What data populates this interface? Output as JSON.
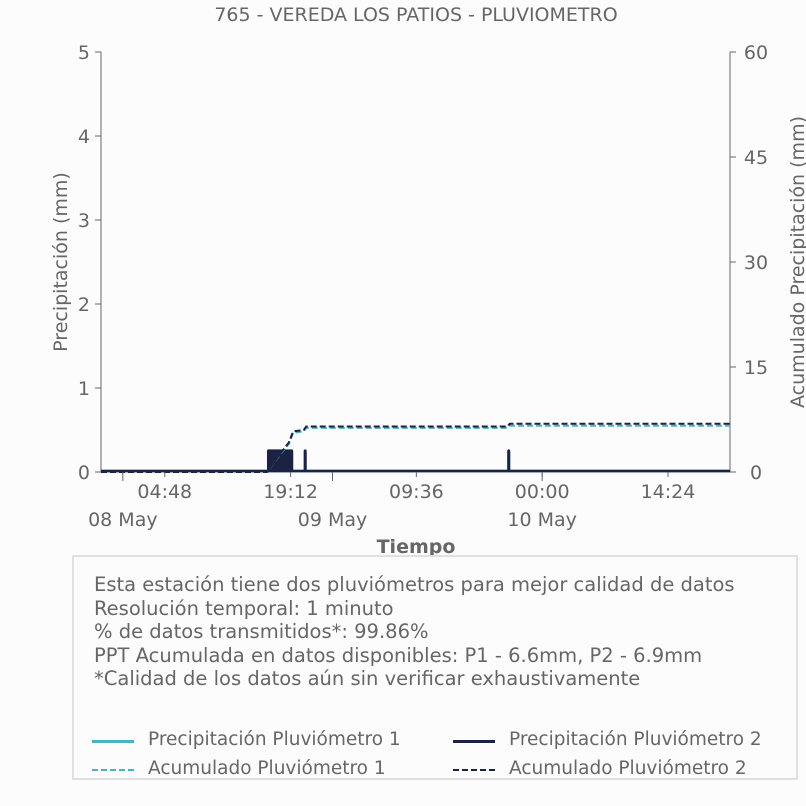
{
  "chart_data": {
    "type": "line",
    "title": "765 - VEREDA LOS PATIOS - PLUVIOMETRO",
    "xlabel": "Tiempo",
    "ylabel": "Precipitación (mm)",
    "y2label": "Acumulado Precipitación (mm)",
    "ylim": [
      0,
      5
    ],
    "y2lim": [
      0,
      60
    ],
    "yticks": [
      "0",
      "1",
      "2",
      "3",
      "4",
      "5"
    ],
    "y2ticks": [
      "0",
      "15",
      "30",
      "45",
      "60"
    ],
    "xticks": [
      {
        "label": "04:48",
        "h": 4.8
      },
      {
        "label": "19:12",
        "h": 19.2
      },
      {
        "label": "09:36",
        "h": 33.6
      },
      {
        "label": "00:00",
        "h": 48
      },
      {
        "label": "14:24",
        "h": 62.4
      }
    ],
    "xdates": [
      {
        "label": "08 May",
        "h": 0
      },
      {
        "label": "09 May",
        "h": 24
      },
      {
        "label": "10 May",
        "h": 48
      }
    ],
    "xlim_hours": [
      -2.5,
      69.5
    ],
    "colors": {
      "p1": "#4bb3c0",
      "p2": "#1c2244",
      "axis": "#666666"
    },
    "series": [
      {
        "name": "Precipitación Pluviómetro 1",
        "style": "solid",
        "color": "#4bb3c0",
        "bars": [
          {
            "start": 16.5,
            "end": 19.5,
            "value": 0.25
          },
          {
            "start": 20.7,
            "end": 21.0,
            "value": 0.25
          },
          {
            "start": 44.0,
            "end": 44.3,
            "value": 0.25
          }
        ]
      },
      {
        "name": "Precipitación Pluviómetro 2",
        "style": "solid",
        "color": "#1c2244",
        "bars": [
          {
            "start": 16.5,
            "end": 19.5,
            "value": 0.27
          },
          {
            "start": 20.7,
            "end": 21.0,
            "value": 0.27
          },
          {
            "start": 44.0,
            "end": 44.3,
            "value": 0.27
          }
        ]
      },
      {
        "name": "Acumulado Pluviómetro 1",
        "style": "dashed",
        "color": "#4bb3c0",
        "axis": "right",
        "x": [
          -2.5,
          16.5,
          18.0,
          19.0,
          19.5,
          20.7,
          21.0,
          44.0,
          44.3,
          69.5
        ],
        "y": [
          0,
          0,
          2.5,
          4.0,
          5.6,
          5.8,
          6.3,
          6.3,
          6.6,
          6.6
        ]
      },
      {
        "name": "Acumulado Pluviómetro 2",
        "style": "dashed",
        "color": "#1c2244",
        "axis": "right",
        "x": [
          -2.5,
          16.5,
          18.0,
          19.0,
          19.5,
          20.7,
          21.0,
          44.0,
          44.3,
          69.5
        ],
        "y": [
          0,
          0,
          2.6,
          4.2,
          5.8,
          6.0,
          6.5,
          6.5,
          6.9,
          6.9
        ]
      }
    ]
  },
  "info": {
    "line1": "Esta estación tiene dos pluviómetros para mejor calidad de datos",
    "line2": "Resolución temporal: 1 minuto",
    "line3": "% de datos transmitidos*: 99.86%",
    "line4": "PPT Acumulada en datos disponibles: P1 - 6.6mm, P2 - 6.9mm",
    "line5": "*Calidad de los datos aún sin verificar exhaustivamente"
  },
  "legend": {
    "p1": "Precipitación Pluviómetro 1",
    "p2": "Precipitación Pluviómetro 2",
    "a1": "Acumulado Pluviómetro 1",
    "a2": "Acumulado Pluviómetro 2"
  }
}
